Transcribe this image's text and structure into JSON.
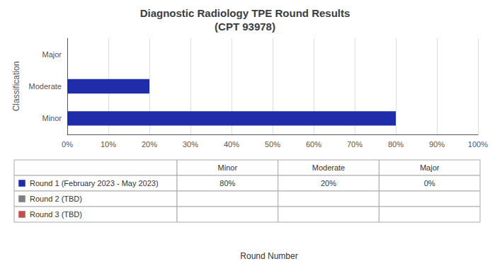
{
  "chart_data": {
    "type": "bar",
    "orientation": "horizontal",
    "title": "Diagnostic Radiology TPE Round Results\n(CPT 93978)",
    "categories": [
      "Minor",
      "Moderate",
      "Major"
    ],
    "values": [
      0.8,
      0.2,
      0.0
    ],
    "color": "#1F2DAA",
    "xlabel": "Round Number",
    "ylabel": "Classification",
    "xlim": [
      0,
      1.0
    ],
    "xticks": [
      {
        "value": 0.0,
        "label": "0%"
      },
      {
        "value": 0.1,
        "label": "10%"
      },
      {
        "value": 0.2,
        "label": "20%"
      },
      {
        "value": 0.3,
        "label": "30%"
      },
      {
        "value": 0.4,
        "label": "40%"
      },
      {
        "value": 0.5,
        "label": "50%"
      },
      {
        "value": 0.6,
        "label": "60%"
      },
      {
        "value": 0.7,
        "label": "70%"
      },
      {
        "value": 0.8,
        "label": "80%"
      },
      {
        "value": 0.9,
        "label": "90%"
      },
      {
        "value": 1.0,
        "label": "100%"
      }
    ],
    "grid": true,
    "table": {
      "columns": [
        "Minor",
        "Moderate",
        "Major"
      ],
      "rows": [
        {
          "name": "Round 1 (February 2023 - May 2023)",
          "color": "#1F2DAA",
          "values": [
            0.8,
            0.2,
            0.0
          ],
          "value_labels": [
            "80%",
            "20%",
            "0%"
          ]
        },
        {
          "name": "Round 2 (TBD)",
          "color": "#7F7F7F"
        },
        {
          "name": "Round 3 (TBD)",
          "color": "#C0504D"
        }
      ]
    }
  }
}
